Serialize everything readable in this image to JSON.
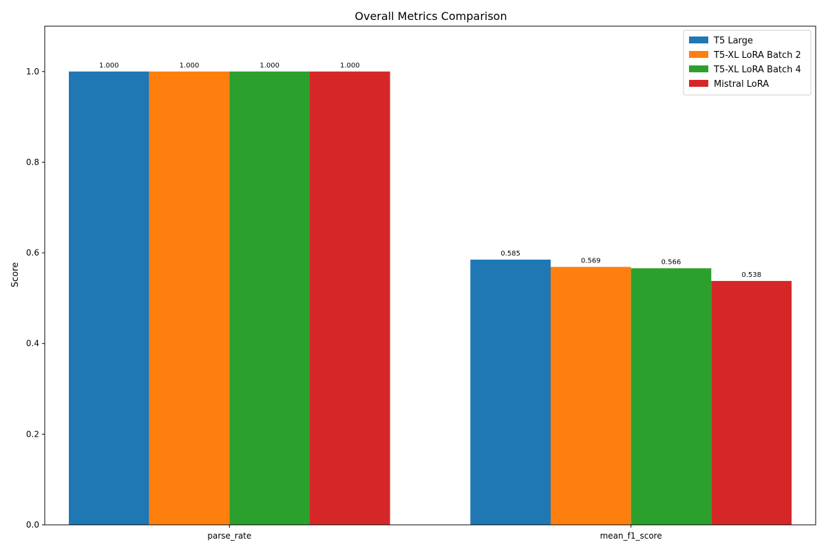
{
  "chart_data": {
    "type": "bar",
    "title": "Overall Metrics Comparison",
    "xlabel": "",
    "ylabel": "Score",
    "categories": [
      "parse_rate",
      "mean_f1_score"
    ],
    "series": [
      {
        "name": "T5 Large",
        "color": "#1f77b4",
        "values": [
          1.0,
          0.585
        ],
        "labels": [
          "1.000",
          "0.585"
        ]
      },
      {
        "name": "T5-XL LoRA Batch 2",
        "color": "#ff7f0e",
        "values": [
          1.0,
          0.569
        ],
        "labels": [
          "1.000",
          "0.569"
        ]
      },
      {
        "name": "T5-XL LoRA Batch 4",
        "color": "#2ca02c",
        "values": [
          1.0,
          0.566
        ],
        "labels": [
          "1.000",
          "0.566"
        ]
      },
      {
        "name": "Mistral LoRA",
        "color": "#d62728",
        "values": [
          1.0,
          0.538
        ],
        "labels": [
          "1.000",
          "0.538"
        ]
      }
    ],
    "ylim": [
      0,
      1.1
    ],
    "yticks": [
      "0.0",
      "0.2",
      "0.4",
      "0.6",
      "0.8",
      "1.0"
    ],
    "grid": false,
    "legend_position": "top-right"
  }
}
